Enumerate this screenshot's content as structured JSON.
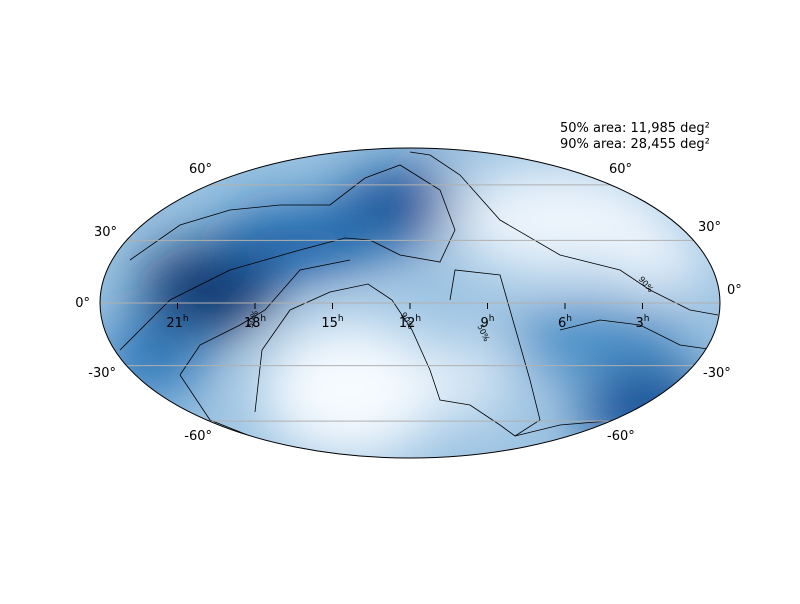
{
  "annotations": [
    "50% area: 11,985 deg²",
    "90% area: 28,455 deg²"
  ],
  "lat_labels": [
    "60°",
    "30°",
    "0°",
    "-30°",
    "-60°"
  ],
  "ra_labels": [
    {
      "hour": "21",
      "sup": "h"
    },
    {
      "hour": "18",
      "sup": "h"
    },
    {
      "hour": "15",
      "sup": "h"
    },
    {
      "hour": "12",
      "sup": "h"
    },
    {
      "hour": "9",
      "sup": "h"
    },
    {
      "hour": "6",
      "sup": "h"
    },
    {
      "hour": "3",
      "sup": "h"
    }
  ],
  "contour_labels": [
    "50%",
    "90%",
    "50%",
    "90%"
  ]
}
